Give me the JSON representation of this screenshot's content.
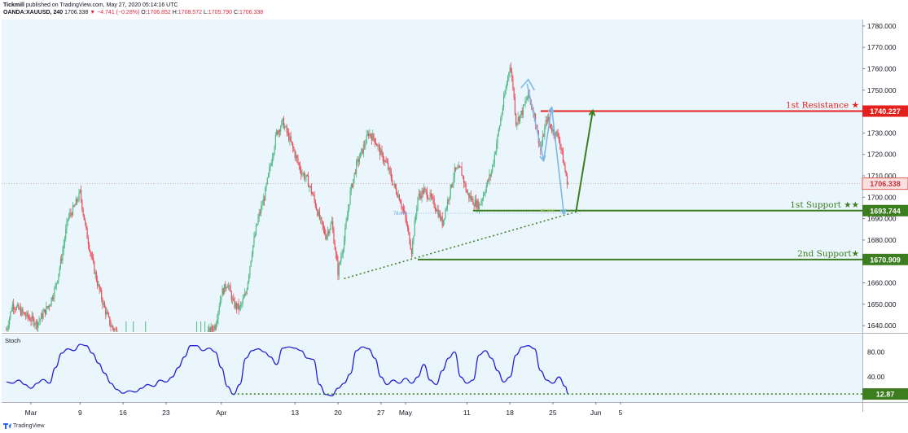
{
  "header": {
    "publisher": "Tickmill",
    "published_text": " published on TradingView.com, May 27, 2020 05:14:16 UTC",
    "symbol": "OANDA:XAUUSD, 240",
    "last": "1706.338",
    "change": "−4.741 (−0.28%)",
    "open_label": "O:",
    "open": "1706.852",
    "high_label": "H:",
    "high": "1708.572",
    "low_label": "L:",
    "low": "1705.790",
    "close_label": "C:",
    "close": "1706.338"
  },
  "footer": {
    "brand": "TradingView"
  },
  "colors": {
    "pane_bg": "#eaf6fb",
    "up": "#53b987",
    "down": "#eb4d5c",
    "resistance": "#e4201c",
    "support": "#3b7d1f",
    "arrow_blue": "#7fb8e6",
    "stoch": "#2323d6",
    "last_price": "#e05a5a"
  },
  "chart_data": [
    {
      "type": "candlestick",
      "name": "Price",
      "ylim": [
        1637,
        1783
      ],
      "y_ticks": [
        "1640.000",
        "1650.000",
        "1660.000",
        "1670.000",
        "1680.000",
        "1690.000",
        "1700.000",
        "1710.000",
        "1720.000",
        "1730.000",
        "1740.000",
        "1750.000",
        "1760.000",
        "1770.000",
        "1780.000"
      ],
      "x_ticks": [
        {
          "label": "Mar",
          "day": 0
        },
        {
          "label": "9",
          "day": 8
        },
        {
          "label": "16",
          "day": 15
        },
        {
          "label": "23",
          "day": 22
        },
        {
          "label": "Apr",
          "day": 31
        },
        {
          "label": "13",
          "day": 43
        },
        {
          "label": "20",
          "day": 50
        },
        {
          "label": "27",
          "day": 57
        },
        {
          "label": "May",
          "day": 61
        },
        {
          "label": "11",
          "day": 71
        },
        {
          "label": "18",
          "day": 78
        },
        {
          "label": "25",
          "day": 85
        },
        {
          "label": "Jun",
          "day": 92
        },
        {
          "label": "5",
          "day": 96
        }
      ],
      "anchors": [
        {
          "day": -4,
          "price": 1638
        },
        {
          "day": -3,
          "price": 1650
        },
        {
          "day": -1,
          "price": 1645
        },
        {
          "day": 1,
          "price": 1641
        },
        {
          "day": 3,
          "price": 1650
        },
        {
          "day": 4,
          "price": 1658
        },
        {
          "day": 5,
          "price": 1672
        },
        {
          "day": 6,
          "price": 1690
        },
        {
          "day": 7,
          "price": 1695
        },
        {
          "day": 8,
          "price": 1702
        },
        {
          "day": 9,
          "price": 1684
        },
        {
          "day": 10,
          "price": 1670
        },
        {
          "day": 11,
          "price": 1658
        },
        {
          "day": 12,
          "price": 1648
        },
        {
          "day": 13,
          "price": 1640
        },
        {
          "day": 14,
          "price": 1637
        },
        {
          "day": 29,
          "price": 1637
        },
        {
          "day": 30,
          "price": 1640
        },
        {
          "day": 31,
          "price": 1655
        },
        {
          "day": 32,
          "price": 1660
        },
        {
          "day": 33,
          "price": 1650
        },
        {
          "day": 34,
          "price": 1648
        },
        {
          "day": 35,
          "price": 1655
        },
        {
          "day": 36,
          "price": 1675
        },
        {
          "day": 37,
          "price": 1690
        },
        {
          "day": 38,
          "price": 1700
        },
        {
          "day": 39,
          "price": 1715
        },
        {
          "day": 40,
          "price": 1730
        },
        {
          "day": 41,
          "price": 1735
        },
        {
          "day": 42,
          "price": 1728
        },
        {
          "day": 43,
          "price": 1720
        },
        {
          "day": 44,
          "price": 1712
        },
        {
          "day": 45,
          "price": 1708
        },
        {
          "day": 46,
          "price": 1700
        },
        {
          "day": 47,
          "price": 1690
        },
        {
          "day": 48,
          "price": 1682
        },
        {
          "day": 49,
          "price": 1688
        },
        {
          "day": 50,
          "price": 1665
        },
        {
          "day": 51,
          "price": 1680
        },
        {
          "day": 52,
          "price": 1702
        },
        {
          "day": 53,
          "price": 1715
        },
        {
          "day": 54,
          "price": 1722
        },
        {
          "day": 55,
          "price": 1730
        },
        {
          "day": 56,
          "price": 1727
        },
        {
          "day": 57,
          "price": 1720
        },
        {
          "day": 58,
          "price": 1715
        },
        {
          "day": 59,
          "price": 1706
        },
        {
          "day": 60,
          "price": 1700
        },
        {
          "day": 61,
          "price": 1690
        },
        {
          "day": 62,
          "price": 1675
        },
        {
          "day": 63,
          "price": 1700
        },
        {
          "day": 64,
          "price": 1703
        },
        {
          "day": 65,
          "price": 1700
        },
        {
          "day": 66,
          "price": 1695
        },
        {
          "day": 67,
          "price": 1688
        },
        {
          "day": 68,
          "price": 1700
        },
        {
          "day": 69,
          "price": 1712
        },
        {
          "day": 70,
          "price": 1713
        },
        {
          "day": 71,
          "price": 1702
        },
        {
          "day": 72,
          "price": 1698
        },
        {
          "day": 73,
          "price": 1696
        },
        {
          "day": 74,
          "price": 1704
        },
        {
          "day": 75,
          "price": 1712
        },
        {
          "day": 76,
          "price": 1728
        },
        {
          "day": 77,
          "price": 1745
        },
        {
          "day": 78,
          "price": 1762
        },
        {
          "day": 78.5,
          "price": 1752
        },
        {
          "day": 79,
          "price": 1735
        },
        {
          "day": 80,
          "price": 1740
        },
        {
          "day": 81,
          "price": 1748
        },
        {
          "day": 82,
          "price": 1738
        },
        {
          "day": 83,
          "price": 1722
        },
        {
          "day": 84,
          "price": 1737
        },
        {
          "day": 85,
          "price": 1731
        },
        {
          "day": 86,
          "price": 1728
        },
        {
          "day": 87,
          "price": 1712
        },
        {
          "day": 87.5,
          "price": 1706.338
        }
      ],
      "last_price_label": "1706.338",
      "levels": [
        {
          "name": "1st Resistance ★",
          "price": 1740.227,
          "label": "1740.227",
          "day_start": 83,
          "kind": "resistance"
        },
        {
          "name": "1st Support ★★",
          "price": 1693.744,
          "label": "1693.744",
          "day_start": 72,
          "kind": "support"
        },
        {
          "name": "2nd Support★",
          "price": 1670.909,
          "label": "1670.909",
          "day_start": 63,
          "kind": "support"
        }
      ],
      "fib_labels": [
        "78.6%",
        "61.8%"
      ],
      "trendline": {
        "from": {
          "day": 51,
          "price": 1662
        },
        "to": {
          "day": 89.5,
          "price": 1693.744
        }
      }
    },
    {
      "type": "line",
      "name": "Stoch",
      "title": "Stoch",
      "ylim": [
        0,
        100
      ],
      "y_ticks": [
        "40.00",
        "80.00"
      ],
      "last_label": "12.87",
      "level_value": 12.87,
      "points": [
        [
          -4,
          32
        ],
        [
          -3,
          30
        ],
        [
          -2,
          35
        ],
        [
          -1,
          28
        ],
        [
          0,
          22
        ],
        [
          1,
          30
        ],
        [
          2,
          36
        ],
        [
          3,
          30
        ],
        [
          4,
          55
        ],
        [
          5,
          78
        ],
        [
          6,
          85
        ],
        [
          7,
          82
        ],
        [
          8,
          92
        ],
        [
          9,
          90
        ],
        [
          10,
          78
        ],
        [
          11,
          62
        ],
        [
          12,
          46
        ],
        [
          13,
          30
        ],
        [
          14,
          20
        ],
        [
          15,
          14
        ],
        [
          16,
          18
        ],
        [
          17,
          16
        ],
        [
          18,
          22
        ],
        [
          19,
          28
        ],
        [
          20,
          25
        ],
        [
          21,
          35
        ],
        [
          22,
          32
        ],
        [
          23,
          40
        ],
        [
          24,
          55
        ],
        [
          25,
          72
        ],
        [
          26,
          90
        ],
        [
          27,
          90
        ],
        [
          28,
          82
        ],
        [
          29,
          86
        ],
        [
          30,
          80
        ],
        [
          31,
          55
        ],
        [
          32,
          25
        ],
        [
          33,
          12
        ],
        [
          34,
          28
        ],
        [
          35,
          70
        ],
        [
          36,
          82
        ],
        [
          37,
          85
        ],
        [
          38,
          80
        ],
        [
          39,
          72
        ],
        [
          40,
          60
        ],
        [
          41,
          86
        ],
        [
          42,
          88
        ],
        [
          43,
          86
        ],
        [
          44,
          82
        ],
        [
          45,
          70
        ],
        [
          46,
          68
        ],
        [
          47,
          28
        ],
        [
          48,
          12
        ],
        [
          49,
          10
        ],
        [
          50,
          22
        ],
        [
          51,
          30
        ],
        [
          52,
          45
        ],
        [
          53,
          82
        ],
        [
          54,
          88
        ],
        [
          55,
          85
        ],
        [
          56,
          70
        ],
        [
          57,
          40
        ],
        [
          58,
          28
        ],
        [
          59,
          35
        ],
        [
          60,
          30
        ],
        [
          61,
          38
        ],
        [
          62,
          30
        ],
        [
          63,
          40
        ],
        [
          64,
          60
        ],
        [
          65,
          35
        ],
        [
          66,
          28
        ],
        [
          67,
          50
        ],
        [
          68,
          70
        ],
        [
          69,
          80
        ],
        [
          70,
          40
        ],
        [
          71,
          30
        ],
        [
          72,
          35
        ],
        [
          73,
          75
        ],
        [
          74,
          82
        ],
        [
          75,
          70
        ],
        [
          76,
          50
        ],
        [
          77,
          32
        ],
        [
          78,
          40
        ],
        [
          79,
          75
        ],
        [
          80,
          88
        ],
        [
          81,
          90
        ],
        [
          82,
          85
        ],
        [
          83,
          50
        ],
        [
          84,
          35
        ],
        [
          85,
          30
        ],
        [
          86,
          40
        ],
        [
          87,
          25
        ],
        [
          87.5,
          12.87
        ]
      ]
    }
  ]
}
